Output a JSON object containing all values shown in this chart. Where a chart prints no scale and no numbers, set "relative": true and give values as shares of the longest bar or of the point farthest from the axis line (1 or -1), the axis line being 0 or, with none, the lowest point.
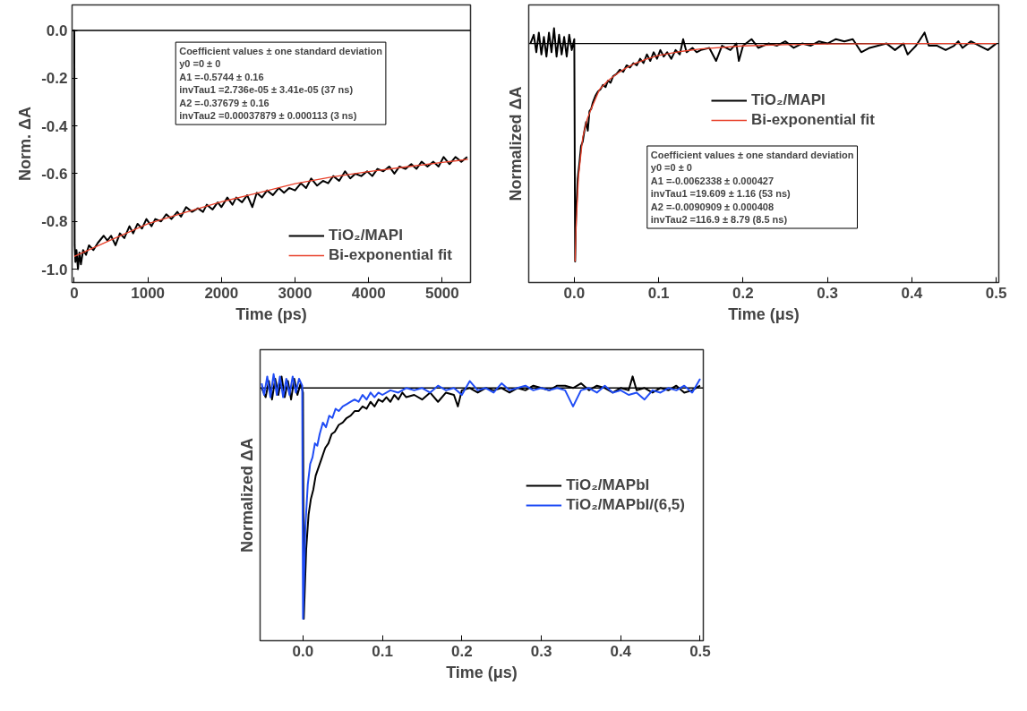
{
  "chart_data": [
    {
      "type": "line",
      "xlabel": "Time (ps)",
      "ylabel": "Norm. ΔA",
      "xlim": [
        -30,
        5385
      ],
      "xticks": [
        0,
        1000,
        2000,
        3000,
        4000,
        5000
      ],
      "ylim": [
        -1.056,
        0.107
      ],
      "yticks": [
        {
          "value": 0,
          "label": "0.0"
        },
        {
          "value": -0.2,
          "label": "-0.2"
        },
        {
          "value": -0.4,
          "label": "-0.4"
        },
        {
          "value": -0.6,
          "label": "-0.6"
        },
        {
          "value": -0.8,
          "label": "-0.8"
        },
        {
          "value": -1.0,
          "label": "-1.0"
        }
      ],
      "legend": "bottom right",
      "ref_lines": [
        {
          "axis": "y",
          "value": 0,
          "color": "#000000"
        }
      ],
      "annotations": [
        "Coefficient values ± one standard deviation",
        "y0 =0 ± 0",
        "A1 =-0.5744 ± 0.16",
        "invTau1 =2.736e-05 ± 3.41e-05 (37 ns)",
        "A2 =-0.37679 ± 0.16",
        "invTau2 =0.00037879 ± 0.000113 (3 ns)"
      ],
      "series": [
        {
          "name": "TiO₂/MAPI",
          "color": "#000000",
          "x": [
            -20,
            0,
            5,
            15,
            30,
            50,
            70,
            90,
            120,
            160,
            200,
            260,
            320,
            400,
            450,
            500,
            560,
            620,
            680,
            750,
            800,
            860,
            920,
            980,
            1050,
            1100,
            1180,
            1250,
            1320,
            1400,
            1450,
            1520,
            1600,
            1680,
            1750,
            1800,
            1880,
            1950,
            2000,
            2080,
            2150,
            2200,
            2280,
            2350,
            2420,
            2480,
            2550,
            2620,
            2700,
            2780,
            2850,
            2920,
            3000,
            3080,
            3150,
            3220,
            3300,
            3380,
            3450,
            3520,
            3600,
            3680,
            3750,
            3820,
            3900,
            3980,
            4050,
            4120,
            4200,
            4280,
            4350,
            4420,
            4500,
            4580,
            4650,
            4720,
            4800,
            4880,
            4950,
            5020,
            5100,
            5180,
            5260,
            5340
          ],
          "values": [
            0.0,
            0.0,
            -0.9,
            -0.97,
            -0.92,
            -1.0,
            -0.93,
            -0.98,
            -0.92,
            -0.94,
            -0.9,
            -0.92,
            -0.89,
            -0.86,
            -0.88,
            -0.86,
            -0.9,
            -0.85,
            -0.87,
            -0.82,
            -0.85,
            -0.81,
            -0.83,
            -0.79,
            -0.82,
            -0.79,
            -0.8,
            -0.77,
            -0.79,
            -0.76,
            -0.78,
            -0.74,
            -0.76,
            -0.745,
            -0.76,
            -0.73,
            -0.75,
            -0.72,
            -0.74,
            -0.7,
            -0.73,
            -0.7,
            -0.72,
            -0.69,
            -0.74,
            -0.68,
            -0.7,
            -0.67,
            -0.69,
            -0.66,
            -0.68,
            -0.66,
            -0.67,
            -0.64,
            -0.66,
            -0.62,
            -0.65,
            -0.63,
            -0.64,
            -0.61,
            -0.63,
            -0.59,
            -0.62,
            -0.6,
            -0.61,
            -0.59,
            -0.61,
            -0.58,
            -0.59,
            -0.57,
            -0.6,
            -0.57,
            -0.58,
            -0.56,
            -0.58,
            -0.55,
            -0.57,
            -0.55,
            -0.57,
            -0.53,
            -0.56,
            -0.53,
            -0.55,
            -0.53
          ]
        },
        {
          "name": "Bi-exponential fit",
          "color": "#e8402a",
          "x": [
            0,
            500,
            1000,
            1500,
            2000,
            2500,
            3000,
            3500,
            4000,
            4500,
            5000,
            5350
          ],
          "values": [
            -0.947,
            -0.877,
            -0.81,
            -0.763,
            -0.718,
            -0.68,
            -0.642,
            -0.614,
            -0.591,
            -0.572,
            -0.553,
            -0.54
          ]
        }
      ]
    },
    {
      "type": "line",
      "relative": true,
      "xlabel": "Time (μs)",
      "ylabel": "Normalized ΔA",
      "xlim": [
        -0.054,
        0.503
      ],
      "xticks": [
        {
          "value": 0,
          "label": "0.0"
        },
        {
          "value": 0.1,
          "label": "0.1"
        },
        {
          "value": 0.2,
          "label": "0.2"
        },
        {
          "value": 0.3,
          "label": "0.3"
        },
        {
          "value": 0.4,
          "label": "0.4"
        },
        {
          "value": 0.5,
          "label": "0.5"
        }
      ],
      "legend": "top",
      "tick_labels": "x",
      "ref_lines": [
        {
          "axis": "y",
          "value": 0,
          "color": "#000000"
        }
      ],
      "annotations": [
        "Coefficient values ± one standard deviation",
        "y0 =0 ± 0",
        "A1 =-0.0062338 ± 0.000427",
        "invTau1 =19.609 ± 1.16 (53 ns)",
        "A2 =-0.0090909 ± 0.000408",
        "invTau2 =116.9 ± 8.79 (8.5 ns)"
      ],
      "series": [
        {
          "name": "TiO₂/MAPI",
          "color": "#000000",
          "x": [
            -0.052,
            -0.048,
            -0.045,
            -0.042,
            -0.039,
            -0.036,
            -0.033,
            -0.03,
            -0.027,
            -0.024,
            -0.021,
            -0.018,
            -0.015,
            -0.012,
            -0.009,
            -0.006,
            -0.003,
            0.0,
            0.001,
            0.002,
            0.004,
            0.006,
            0.008,
            0.01,
            0.012,
            0.014,
            0.016,
            0.018,
            0.02,
            0.022,
            0.025,
            0.028,
            0.031,
            0.034,
            0.037,
            0.04,
            0.043,
            0.046,
            0.05,
            0.054,
            0.058,
            0.062,
            0.066,
            0.07,
            0.074,
            0.078,
            0.082,
            0.086,
            0.09,
            0.094,
            0.098,
            0.102,
            0.106,
            0.11,
            0.115,
            0.12,
            0.125,
            0.129,
            0.133,
            0.14,
            0.145,
            0.15,
            0.16,
            0.168,
            0.175,
            0.185,
            0.192,
            0.195,
            0.2,
            0.21,
            0.218,
            0.23,
            0.24,
            0.25,
            0.26,
            0.27,
            0.28,
            0.29,
            0.3,
            0.31,
            0.32,
            0.33,
            0.34,
            0.35,
            0.36,
            0.37,
            0.38,
            0.39,
            0.395,
            0.405,
            0.415,
            0.42,
            0.43,
            0.44,
            0.45,
            0.455,
            0.46,
            0.47,
            0.48,
            0.49,
            0.5
          ],
          "values": [
            0.0,
            0.04,
            -0.04,
            0.05,
            -0.05,
            0.03,
            -0.06,
            0.05,
            -0.04,
            0.07,
            -0.06,
            0.04,
            -0.05,
            0.03,
            -0.06,
            0.04,
            -0.03,
            0.02,
            -1.0,
            -0.8,
            -0.62,
            -0.55,
            -0.47,
            -0.45,
            -0.4,
            -0.36,
            -0.4,
            -0.31,
            -0.3,
            -0.27,
            -0.24,
            -0.22,
            -0.21,
            -0.19,
            -0.2,
            -0.17,
            -0.18,
            -0.15,
            -0.14,
            -0.12,
            -0.13,
            -0.1,
            -0.11,
            -0.09,
            -0.1,
            -0.07,
            -0.09,
            -0.05,
            -0.08,
            -0.04,
            -0.07,
            -0.03,
            -0.06,
            -0.04,
            -0.07,
            -0.03,
            -0.05,
            0.02,
            -0.04,
            -0.02,
            -0.04,
            -0.03,
            -0.02,
            -0.08,
            -0.01,
            -0.03,
            0.0,
            -0.08,
            -0.01,
            0.02,
            -0.02,
            0.0,
            -0.01,
            0.01,
            -0.02,
            0.0,
            -0.01,
            0.01,
            0.0,
            0.02,
            0.01,
            0.02,
            -0.04,
            -0.02,
            -0.01,
            0.0,
            -0.03,
            0.0,
            -0.05,
            -0.01,
            0.05,
            -0.01,
            -0.01,
            -0.03,
            -0.01,
            0.01,
            -0.02,
            0.01,
            -0.01,
            -0.03,
            0.0
          ]
        },
        {
          "name": "Bi-exponential fit",
          "color": "#e8402a",
          "x": [
            0.001,
            0.002,
            0.005,
            0.01,
            0.015,
            0.02,
            0.03,
            0.04,
            0.05,
            0.06,
            0.07,
            0.085,
            0.1,
            0.125,
            0.15,
            0.2,
            0.25,
            0.3,
            0.4,
            0.5
          ],
          "values": [
            -1.0,
            -0.85,
            -0.61,
            -0.43,
            -0.35,
            -0.3,
            -0.21,
            -0.17,
            -0.14,
            -0.115,
            -0.095,
            -0.072,
            -0.055,
            -0.037,
            -0.025,
            -0.011,
            -0.005,
            -0.002,
            0.0,
            0.0
          ]
        }
      ]
    },
    {
      "type": "line",
      "relative": true,
      "xlabel": "Time (μs)",
      "ylabel": "Normalized ΔA",
      "xlim": [
        -0.054,
        0.504
      ],
      "xticks": [
        {
          "value": 0,
          "label": "0.0"
        },
        {
          "value": 0.1,
          "label": "0.1"
        },
        {
          "value": 0.2,
          "label": "0.2"
        },
        {
          "value": 0.3,
          "label": "0.3"
        },
        {
          "value": 0.4,
          "label": "0.4"
        },
        {
          "value": 0.5,
          "label": "0.5"
        }
      ],
      "legend": "right",
      "tick_labels": "x",
      "ref_lines": [
        {
          "axis": "y",
          "value": 0,
          "color": "#000000"
        }
      ],
      "series": [
        {
          "name": "TiO₂/MAPbI",
          "color": "#000000",
          "x": [
            -0.052,
            -0.047,
            -0.043,
            -0.039,
            -0.035,
            -0.031,
            -0.027,
            -0.023,
            -0.019,
            -0.015,
            -0.011,
            -0.007,
            -0.003,
            0.0,
            0.001,
            0.004,
            0.007,
            0.01,
            0.013,
            0.016,
            0.02,
            0.024,
            0.028,
            0.032,
            0.036,
            0.04,
            0.045,
            0.05,
            0.055,
            0.06,
            0.065,
            0.07,
            0.075,
            0.08,
            0.085,
            0.09,
            0.095,
            0.1,
            0.105,
            0.11,
            0.115,
            0.12,
            0.125,
            0.13,
            0.14,
            0.15,
            0.16,
            0.17,
            0.18,
            0.19,
            0.195,
            0.2,
            0.21,
            0.22,
            0.23,
            0.24,
            0.25,
            0.26,
            0.27,
            0.28,
            0.29,
            0.3,
            0.31,
            0.32,
            0.33,
            0.34,
            0.35,
            0.36,
            0.37,
            0.38,
            0.39,
            0.4,
            0.41,
            0.415,
            0.42,
            0.43,
            0.44,
            0.45,
            0.46,
            0.47,
            0.48,
            0.49,
            0.5
          ],
          "values": [
            0.0,
            -0.04,
            0.03,
            -0.05,
            0.04,
            -0.03,
            0.05,
            -0.04,
            0.03,
            -0.05,
            0.04,
            -0.03,
            0.02,
            -0.02,
            -1.0,
            -0.7,
            -0.55,
            -0.48,
            -0.44,
            -0.38,
            -0.34,
            -0.3,
            -0.26,
            -0.24,
            -0.2,
            -0.19,
            -0.16,
            -0.15,
            -0.13,
            -0.12,
            -0.1,
            -0.1,
            -0.08,
            -0.09,
            -0.06,
            -0.08,
            -0.05,
            -0.06,
            -0.04,
            -0.06,
            -0.03,
            -0.05,
            -0.02,
            -0.04,
            -0.03,
            -0.05,
            -0.02,
            -0.06,
            -0.02,
            -0.03,
            -0.08,
            -0.01,
            0.0,
            -0.02,
            0.0,
            -0.01,
            0.0,
            -0.02,
            0.0,
            -0.01,
            0.01,
            0.0,
            -0.01,
            0.01,
            0.01,
            0.0,
            0.02,
            -0.01,
            0.01,
            0.0,
            -0.02,
            0.0,
            -0.01,
            0.05,
            -0.01,
            0.0,
            -0.02,
            0.0,
            -0.01,
            0.01,
            -0.02,
            -0.01,
            0.01
          ]
        },
        {
          "name": "TiO₂/MAPbI/(6,5)",
          "color": "#1f4cf5",
          "x": [
            -0.052,
            -0.049,
            -0.045,
            -0.041,
            -0.037,
            -0.033,
            -0.029,
            -0.025,
            -0.021,
            -0.017,
            -0.013,
            -0.009,
            -0.005,
            -0.001,
            0.0,
            0.003,
            0.006,
            0.009,
            0.012,
            0.015,
            0.018,
            0.021,
            0.025,
            0.029,
            0.033,
            0.037,
            0.041,
            0.045,
            0.05,
            0.055,
            0.06,
            0.065,
            0.07,
            0.075,
            0.08,
            0.085,
            0.09,
            0.095,
            0.1,
            0.11,
            0.12,
            0.13,
            0.14,
            0.15,
            0.16,
            0.17,
            0.18,
            0.19,
            0.2,
            0.21,
            0.22,
            0.23,
            0.24,
            0.25,
            0.26,
            0.27,
            0.28,
            0.29,
            0.3,
            0.31,
            0.32,
            0.33,
            0.34,
            0.35,
            0.36,
            0.37,
            0.38,
            0.39,
            0.4,
            0.41,
            0.42,
            0.43,
            0.44,
            0.45,
            0.46,
            0.47,
            0.48,
            0.49,
            0.5
          ],
          "values": [
            0.02,
            -0.03,
            0.05,
            -0.04,
            0.06,
            -0.03,
            0.05,
            -0.04,
            0.04,
            -0.03,
            0.05,
            -0.02,
            0.04,
            0.01,
            -1.0,
            -0.6,
            -0.42,
            -0.33,
            -0.3,
            -0.24,
            -0.25,
            -0.2,
            -0.15,
            -0.17,
            -0.12,
            -0.13,
            -0.09,
            -0.1,
            -0.08,
            -0.07,
            -0.06,
            -0.05,
            -0.06,
            -0.03,
            -0.05,
            -0.02,
            -0.04,
            -0.02,
            -0.03,
            -0.01,
            -0.02,
            0.0,
            -0.01,
            0.0,
            -0.02,
            0.01,
            -0.01,
            0.0,
            -0.03,
            0.03,
            -0.01,
            0.0,
            -0.02,
            0.02,
            -0.01,
            0.0,
            0.01,
            -0.01,
            0.0,
            -0.01,
            0.0,
            -0.01,
            -0.08,
            -0.01,
            0.0,
            -0.02,
            0.01,
            -0.02,
            -0.01,
            -0.03,
            -0.02,
            -0.05,
            -0.01,
            -0.02,
            0.0,
            -0.01,
            0.01,
            -0.02,
            0.04
          ]
        }
      ]
    }
  ]
}
